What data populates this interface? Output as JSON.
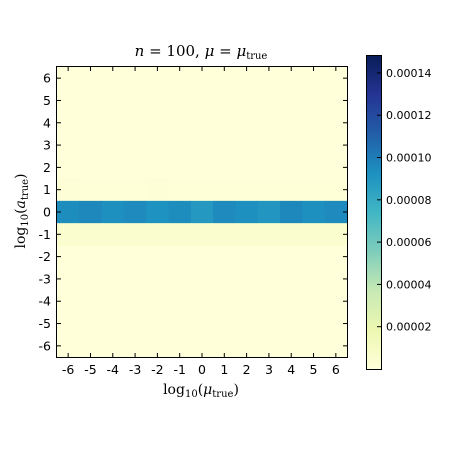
{
  "chart_data": {
    "type": "heatmap",
    "title": "n = 100,  μ = μ_true",
    "title_parts": {
      "n": "n",
      "eq_n": " = 100,  ",
      "mu": "μ",
      "eq_mu": " = ",
      "mu_true": "μ",
      "true_sub": "true"
    },
    "xlabel_parts": {
      "log": "log",
      "base": "10",
      "open": "(",
      "var": "μ",
      "sub": "true",
      "close": ")"
    },
    "ylabel_parts": {
      "log": "log",
      "base": "10",
      "open": "(",
      "var": "a",
      "sub": "true",
      "close": ")"
    },
    "x_ticks": [
      "-6",
      "-5",
      "-4",
      "-3",
      "-2",
      "-1",
      "0",
      "1",
      "2",
      "3",
      "4",
      "5",
      "6"
    ],
    "y_ticks": [
      "6",
      "5",
      "4",
      "3",
      "2",
      "1",
      "0",
      "-1",
      "-2",
      "-3",
      "-4",
      "-5",
      "-6"
    ],
    "x": [
      -6,
      -5,
      -4,
      -3,
      -2,
      -1,
      0,
      1,
      2,
      3,
      4,
      5,
      6
    ],
    "y": [
      6,
      5,
      4,
      3,
      2,
      1,
      0,
      -1,
      -2,
      -3,
      -4,
      -5,
      -6
    ],
    "zlim": [
      0,
      0.000148
    ],
    "colormap": "YlGnBu",
    "colorbar_ticks": [
      "0.00002",
      "0.00004",
      "0.00006",
      "0.00008",
      "0.00010",
      "0.00012",
      "0.00014"
    ],
    "colorbar_tick_values": [
      2e-05,
      4e-05,
      6e-05,
      8e-05,
      0.0001,
      0.00012,
      0.00014
    ],
    "row_values": {
      "6": 0.0,
      "5": 0.0,
      "4": 0.0,
      "3": 0.0,
      "2": 0.0,
      "1": 1.2e-06,
      "0": 9.3e-05,
      "-1": 5.2e-06,
      "-2": 0.0,
      "-3": 0.0,
      "-4": 0.0,
      "-5": 0.0,
      "-6": 0.0
    },
    "row0_values": [
      9.4e-05,
      9.6e-05,
      9.3e-05,
      9.5e-05,
      9.2e-05,
      9.4e-05,
      8.9e-05,
      9.5e-05,
      9.3e-05,
      9e-05,
      9.6e-05,
      9.3e-05,
      9.5e-05
    ],
    "row1_values": [
      1.5e-06,
      1.2e-06,
      1.3e-06,
      1.2e-06,
      1.4e-06,
      1.2e-06,
      1.3e-06,
      1.2e-06,
      1.1e-06,
      1.2e-06,
      1.3e-06,
      1.2e-06,
      1.2e-06
    ],
    "rowm1_values": [
      5.5e-06,
      5e-06,
      5.3e-06,
      5.1e-06,
      5.4e-06,
      5e-06,
      5.2e-06,
      5.5e-06,
      5.1e-06,
      5.3e-06,
      5e-06,
      5.2e-06,
      5.4e-06
    ]
  }
}
